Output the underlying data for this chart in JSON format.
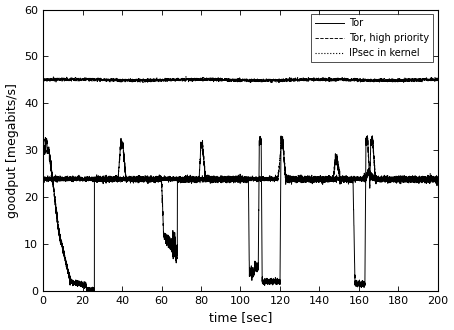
{
  "title": "",
  "xlabel": "time [sec]",
  "ylabel": "goodput [megabits/s]",
  "xlim": [
    0,
    200
  ],
  "ylim": [
    0,
    60
  ],
  "xticks": [
    0,
    20,
    40,
    60,
    80,
    100,
    120,
    140,
    160,
    180,
    200
  ],
  "yticks": [
    0,
    10,
    20,
    30,
    40,
    50,
    60
  ],
  "legend_labels": [
    "Tor",
    "Tor, high priority",
    "IPsec in kernel"
  ],
  "line_color": "black",
  "ipsec_value": 45.0,
  "tor_base": 23.8,
  "tor_high_base": 23.9,
  "seed": 42,
  "figsize": [
    4.54,
    3.3
  ],
  "dpi": 100,
  "noise_tor": 0.3,
  "noise_tor_high": 0.25,
  "noise_ipsec": 0.15
}
